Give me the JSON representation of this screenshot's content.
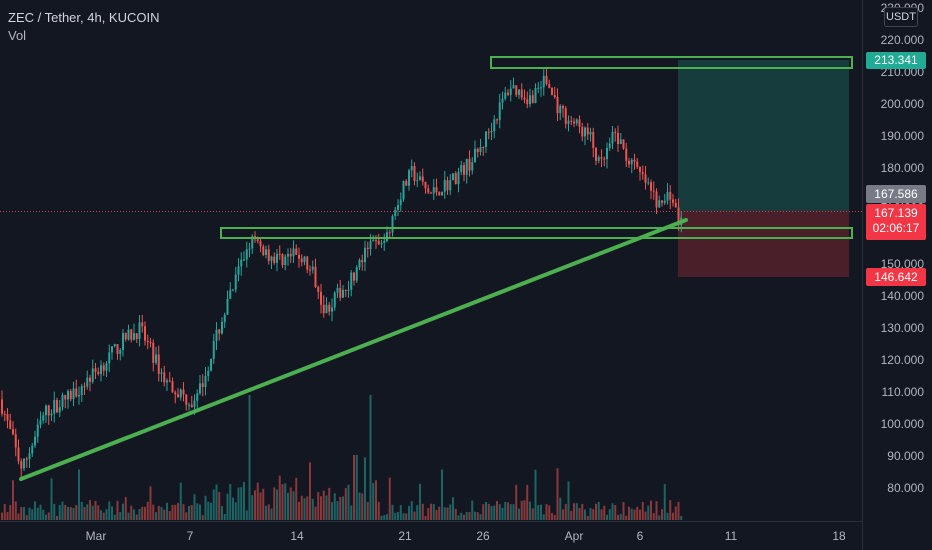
{
  "header": {
    "symbol_line": "ZEC / Tether, 4h, KUCOIN",
    "volume_label": "Vol"
  },
  "currency": "USDT",
  "price_tags": {
    "target": "213.341",
    "last_candle": "167.586",
    "current": "167.139",
    "countdown": "02:06:17",
    "stop": "146.642"
  },
  "colors": {
    "background": "#131722",
    "up": "#26a69a",
    "down": "#ef5350",
    "zone_stroke": "#4caf50",
    "trendline": "#4caf50",
    "target_tag": "#22ab94",
    "stop_tag": "#f23645",
    "current_tag": "#f23645",
    "last_tag": "#787b86"
  },
  "chart_data": {
    "type": "candlestick",
    "title": "ZEC / Tether, 4h, KUCOIN",
    "y_axis": {
      "ticks": [
        "230.000",
        "220.000",
        "210.000",
        "200.000",
        "190.000",
        "180.000",
        "170.000",
        "160.000",
        "150.000",
        "140.000",
        "130.000",
        "120.000",
        "110.000",
        "100.000",
        "90.000",
        "80.000"
      ],
      "range": [
        75,
        232
      ],
      "position": "right"
    },
    "x_axis": {
      "ticks": [
        "Mar",
        "7",
        "14",
        "21",
        "26",
        "Apr",
        "6",
        "11",
        "18"
      ]
    },
    "series_close_path": [
      [
        "Feb 26",
        108
      ],
      [
        "Feb 27",
        86
      ],
      [
        "Feb 28",
        104
      ],
      [
        "Mar 2",
        109
      ],
      [
        "Mar 3",
        118
      ],
      [
        "Mar 4",
        127
      ],
      [
        "Mar 5",
        130
      ],
      [
        "Mar 6",
        114
      ],
      [
        "Mar 7",
        106
      ],
      [
        "Mar 8",
        131
      ],
      [
        "Mar 9",
        158
      ],
      [
        "Mar 10",
        152
      ],
      [
        "Mar 12",
        153
      ],
      [
        "Mar 13",
        146
      ],
      [
        "Mar 14",
        136
      ],
      [
        "Mar 15",
        143
      ],
      [
        "Mar 16",
        150
      ],
      [
        "Mar 17",
        156
      ],
      [
        "Mar 18",
        158
      ],
      [
        "Mar 19",
        172
      ],
      [
        "Mar 20",
        179
      ],
      [
        "Mar 21",
        172
      ],
      [
        "Mar 22",
        176
      ],
      [
        "Mar 23",
        182
      ],
      [
        "Mar 24",
        186
      ],
      [
        "Mar 25",
        196
      ],
      [
        "Mar 26",
        206
      ],
      [
        "Mar 27",
        202
      ],
      [
        "Mar 28",
        208
      ],
      [
        "Mar 29",
        198
      ],
      [
        "Mar 30",
        194
      ],
      [
        "Mar 31",
        190
      ],
      [
        "Apr 1",
        180
      ],
      [
        "Apr 2",
        191
      ],
      [
        "Apr 3",
        182
      ],
      [
        "Apr 4",
        176
      ],
      [
        "Apr 5",
        168
      ],
      [
        "Apr 6",
        173
      ],
      [
        "Apr 7",
        162
      ],
      [
        "Apr 8",
        167.139
      ]
    ],
    "annotations": {
      "resistance_zone": {
        "from": "Mar 26",
        "to": "Apr 15",
        "low": 210.5,
        "high": 213.8
      },
      "support_zone": {
        "from": "Mar 8",
        "to": "Apr 15",
        "low": 157.5,
        "high": 161
      },
      "trendline": [
        [
          "Feb 27",
          86
        ],
        [
          "Apr 8",
          163
        ]
      ],
      "long_position": {
        "from": "Apr 8",
        "to": "Apr 15",
        "entry": 167.139,
        "target": 213.341,
        "stop": 146.642
      }
    },
    "grid": false,
    "legend": "top-left"
  }
}
